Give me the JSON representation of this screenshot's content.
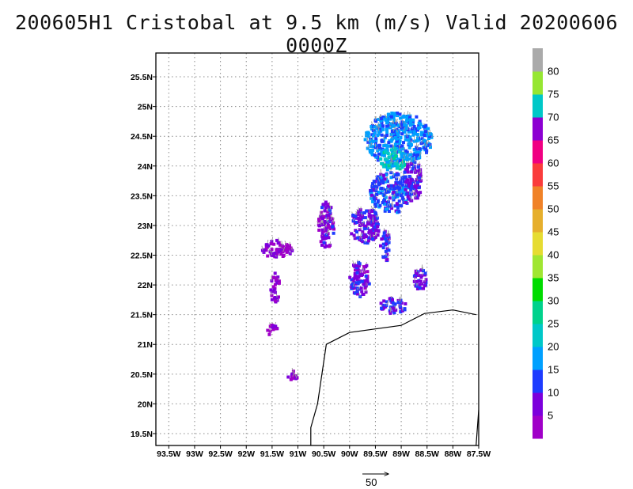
{
  "title": "200605H1 Cristobal at 9.5 km (m/s) Valid 20200606 0000Z",
  "map": {
    "lon_range": [
      -93.75,
      -87.5
    ],
    "lat_range": [
      19.3,
      25.9
    ],
    "lon_ticks": [
      {
        "value": -93.5,
        "label": "93.5W"
      },
      {
        "value": -93.0,
        "label": "93W"
      },
      {
        "value": -92.5,
        "label": "92.5W"
      },
      {
        "value": -92.0,
        "label": "92W"
      },
      {
        "value": -91.5,
        "label": "91.5W"
      },
      {
        "value": -91.0,
        "label": "91W"
      },
      {
        "value": -90.5,
        "label": "90.5W"
      },
      {
        "value": -90.0,
        "label": "90W"
      },
      {
        "value": -89.5,
        "label": "89.5W"
      },
      {
        "value": -89.0,
        "label": "89W"
      },
      {
        "value": -88.5,
        "label": "88.5W"
      },
      {
        "value": -88.0,
        "label": "88W"
      },
      {
        "value": -87.5,
        "label": "87.5W"
      }
    ],
    "lat_ticks": [
      {
        "value": 19.5,
        "label": "19.5N"
      },
      {
        "value": 20.0,
        "label": "20N"
      },
      {
        "value": 20.5,
        "label": "20.5N"
      },
      {
        "value": 21.0,
        "label": "21N"
      },
      {
        "value": 21.5,
        "label": "21.5N"
      },
      {
        "value": 22.0,
        "label": "22N"
      },
      {
        "value": 22.5,
        "label": "22.5N"
      },
      {
        "value": 23.0,
        "label": "23N"
      },
      {
        "value": 23.5,
        "label": "23.5N"
      },
      {
        "value": 24.0,
        "label": "24N"
      },
      {
        "value": 24.5,
        "label": "24.5N"
      },
      {
        "value": 25.0,
        "label": "25N"
      },
      {
        "value": 25.5,
        "label": "25.5N"
      }
    ],
    "gridlines": true,
    "coastline": [
      [
        [
          -90.75,
          19.3
        ],
        [
          -90.75,
          19.6
        ],
        [
          -90.62,
          20.0
        ],
        [
          -90.45,
          21.0
        ],
        [
          -90.0,
          21.2
        ],
        [
          -89.0,
          21.32
        ],
        [
          -88.55,
          21.52
        ],
        [
          -88.0,
          21.58
        ],
        [
          -87.55,
          21.5
        ]
      ],
      [
        [
          -87.55,
          19.3
        ],
        [
          -87.5,
          19.9
        ]
      ]
    ],
    "wind_regions": [
      {
        "lon": [
          -89.7,
          -88.4
        ],
        "lat": [
          24.0,
          24.9
        ],
        "speed": 16
      },
      {
        "lon": [
          -89.4,
          -88.9
        ],
        "lat": [
          23.9,
          24.3
        ],
        "speed": 23
      },
      {
        "lon": [
          -89.6,
          -88.8
        ],
        "lat": [
          23.2,
          23.9
        ],
        "speed": 13
      },
      {
        "lon": [
          -88.95,
          -88.6
        ],
        "lat": [
          23.4,
          24.1
        ],
        "speed": 9
      },
      {
        "lon": [
          -90.0,
          -89.4
        ],
        "lat": [
          22.7,
          23.3
        ],
        "speed": 9
      },
      {
        "lon": [
          -89.4,
          -89.2
        ],
        "lat": [
          22.4,
          22.9
        ],
        "speed": 10
      },
      {
        "lon": [
          -90.0,
          -89.6
        ],
        "lat": [
          21.8,
          22.4
        ],
        "speed": 8
      },
      {
        "lon": [
          -89.4,
          -88.9
        ],
        "lat": [
          21.5,
          21.8
        ],
        "speed": 11
      },
      {
        "lon": [
          -88.75,
          -88.5
        ],
        "lat": [
          21.9,
          22.3
        ],
        "speed": 9
      },
      {
        "lon": [
          -90.6,
          -90.3
        ],
        "lat": [
          22.6,
          23.4
        ],
        "speed": 7
      },
      {
        "lon": [
          -91.7,
          -91.1
        ],
        "lat": [
          22.45,
          22.75
        ],
        "speed": 5
      },
      {
        "lon": [
          -91.55,
          -91.35
        ],
        "lat": [
          21.7,
          22.2
        ],
        "speed": 4
      },
      {
        "lon": [
          -91.6,
          -91.4
        ],
        "lat": [
          21.15,
          21.35
        ],
        "speed": 4
      },
      {
        "lon": [
          -91.2,
          -91.0
        ],
        "lat": [
          20.4,
          20.55
        ],
        "speed": 3
      }
    ]
  },
  "colorbar": {
    "labels": [
      "5",
      "10",
      "15",
      "20",
      "25",
      "30",
      "35",
      "40",
      "45",
      "50",
      "55",
      "60",
      "65",
      "70",
      "75",
      "80"
    ],
    "colors": [
      "#a000c8",
      "#7c00dc",
      "#1e3cff",
      "#00a0ff",
      "#00c8c8",
      "#00d28c",
      "#00dc00",
      "#a0e632",
      "#e6dc32",
      "#e6af2d",
      "#f08228",
      "#fa3c3c",
      "#f00082",
      "#8c00d2",
      "#00c8c8",
      "#96e632",
      "#aaaaaa"
    ]
  },
  "reference_vector": {
    "label": "50"
  }
}
